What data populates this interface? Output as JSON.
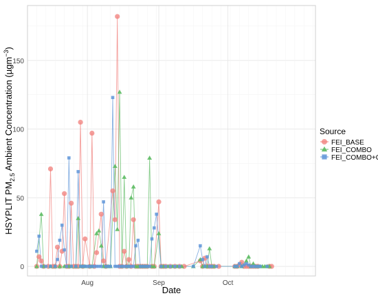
{
  "chart_data": {
    "type": "scatter",
    "ylabel_main": "HSYPLIT PM",
    "ylabel_sub": "2.5",
    "ylabel_rest": " Ambient Concentration (µgm",
    "ylabel_sup": "−3",
    "ylabel_end": ")",
    "xlabel": "Date",
    "x_start": "2011-07-06",
    "x_end": "2011-11-08",
    "ylim": [
      -7,
      190
    ],
    "x_ticks": [
      {
        "date": "2011-08-01",
        "label": "Aug"
      },
      {
        "date": "2011-09-01",
        "label": "Sep"
      },
      {
        "date": "2011-10-01",
        "label": "Oct"
      }
    ],
    "y_ticks": [
      0,
      50,
      100,
      150
    ],
    "grid": true,
    "legend_position": "right",
    "legend_title": "Source",
    "series": [
      {
        "name": "FEI_BASE",
        "color": "#F07E7A",
        "marker": "circle",
        "points": [
          [
            "2011-07-10",
            0
          ],
          [
            "2011-07-11",
            7
          ],
          [
            "2011-07-12",
            4
          ],
          [
            "2011-07-13",
            0
          ],
          [
            "2011-07-15",
            0
          ],
          [
            "2011-07-16",
            71
          ],
          [
            "2011-07-17",
            0
          ],
          [
            "2011-07-18",
            0
          ],
          [
            "2011-07-19",
            14
          ],
          [
            "2011-07-20",
            0
          ],
          [
            "2011-07-21",
            11
          ],
          [
            "2011-07-22",
            53
          ],
          [
            "2011-07-23",
            0
          ],
          [
            "2011-07-24",
            0
          ],
          [
            "2011-07-25",
            46
          ],
          [
            "2011-07-26",
            0
          ],
          [
            "2011-07-27",
            0
          ],
          [
            "2011-07-28",
            0
          ],
          [
            "2011-07-29",
            105
          ],
          [
            "2011-07-30",
            0
          ],
          [
            "2011-07-31",
            20
          ],
          [
            "2011-08-02",
            0
          ],
          [
            "2011-08-03",
            97
          ],
          [
            "2011-08-04",
            0
          ],
          [
            "2011-08-05",
            10
          ],
          [
            "2011-08-07",
            38
          ],
          [
            "2011-08-08",
            4
          ],
          [
            "2011-08-09",
            0
          ],
          [
            "2011-08-12",
            55
          ],
          [
            "2011-08-13",
            34
          ],
          [
            "2011-08-14",
            182
          ],
          [
            "2011-08-15",
            0
          ],
          [
            "2011-08-16",
            0
          ],
          [
            "2011-08-17",
            11
          ],
          [
            "2011-08-18",
            0
          ],
          [
            "2011-08-19",
            5
          ],
          [
            "2011-08-20",
            0
          ],
          [
            "2011-08-21",
            34
          ],
          [
            "2011-08-22",
            0
          ],
          [
            "2011-08-23",
            0
          ],
          [
            "2011-08-24",
            0
          ],
          [
            "2011-08-25",
            0
          ],
          [
            "2011-08-26",
            0
          ],
          [
            "2011-08-27",
            0
          ],
          [
            "2011-08-29",
            0
          ],
          [
            "2011-08-30",
            0
          ],
          [
            "2011-09-01",
            47
          ],
          [
            "2011-09-02",
            0
          ],
          [
            "2011-09-03",
            0
          ],
          [
            "2011-09-04",
            0
          ],
          [
            "2011-09-06",
            0
          ],
          [
            "2011-09-08",
            0
          ],
          [
            "2011-09-10",
            0
          ],
          [
            "2011-09-12",
            0
          ],
          [
            "2011-09-19",
            4
          ],
          [
            "2011-09-20",
            0
          ],
          [
            "2011-09-21",
            6
          ],
          [
            "2011-09-22",
            0
          ],
          [
            "2011-09-23",
            0
          ],
          [
            "2011-09-24",
            0
          ],
          [
            "2011-09-25",
            0
          ],
          [
            "2011-09-27",
            0
          ],
          [
            "2011-10-04",
            0
          ],
          [
            "2011-10-05",
            0
          ],
          [
            "2011-10-06",
            1
          ],
          [
            "2011-10-07",
            3
          ],
          [
            "2011-10-08",
            0
          ],
          [
            "2011-10-09",
            0
          ],
          [
            "2011-10-10",
            0
          ],
          [
            "2011-10-11",
            0
          ],
          [
            "2011-10-12",
            0
          ],
          [
            "2011-10-13",
            0
          ],
          [
            "2011-10-14",
            0
          ],
          [
            "2011-10-19",
            0
          ],
          [
            "2011-10-20",
            0
          ]
        ]
      },
      {
        "name": "FEI_COMBO",
        "color": "#5DBB63",
        "marker": "triangle",
        "points": [
          [
            "2011-07-10",
            0
          ],
          [
            "2011-07-12",
            38
          ],
          [
            "2011-07-13",
            0
          ],
          [
            "2011-07-16",
            0
          ],
          [
            "2011-07-18",
            0
          ],
          [
            "2011-07-20",
            0
          ],
          [
            "2011-07-22",
            0
          ],
          [
            "2011-07-24",
            0
          ],
          [
            "2011-07-25",
            0
          ],
          [
            "2011-07-27",
            0
          ],
          [
            "2011-07-28",
            35
          ],
          [
            "2011-07-29",
            0
          ],
          [
            "2011-07-30",
            0
          ],
          [
            "2011-07-31",
            0
          ],
          [
            "2011-08-02",
            0
          ],
          [
            "2011-08-03",
            0
          ],
          [
            "2011-08-05",
            24
          ],
          [
            "2011-08-06",
            26
          ],
          [
            "2011-08-07",
            15
          ],
          [
            "2011-08-08",
            0
          ],
          [
            "2011-08-09",
            0
          ],
          [
            "2011-08-10",
            0
          ],
          [
            "2011-08-11",
            0
          ],
          [
            "2011-08-13",
            73
          ],
          [
            "2011-08-14",
            27
          ],
          [
            "2011-08-15",
            127
          ],
          [
            "2011-08-16",
            0
          ],
          [
            "2011-08-17",
            65
          ],
          [
            "2011-08-18",
            0
          ],
          [
            "2011-08-19",
            0
          ],
          [
            "2011-08-20",
            50
          ],
          [
            "2011-08-21",
            58
          ],
          [
            "2011-08-22",
            0
          ],
          [
            "2011-08-23",
            0
          ],
          [
            "2011-08-24",
            0
          ],
          [
            "2011-08-25",
            0
          ],
          [
            "2011-08-26",
            0
          ],
          [
            "2011-08-27",
            0
          ],
          [
            "2011-08-28",
            79
          ],
          [
            "2011-08-29",
            0
          ],
          [
            "2011-08-30",
            0
          ],
          [
            "2011-09-01",
            24
          ],
          [
            "2011-09-02",
            0
          ],
          [
            "2011-09-03",
            0
          ],
          [
            "2011-09-05",
            0
          ],
          [
            "2011-09-07",
            0
          ],
          [
            "2011-09-09",
            0
          ],
          [
            "2011-09-11",
            0
          ],
          [
            "2011-09-16",
            0
          ],
          [
            "2011-09-19",
            5
          ],
          [
            "2011-09-20",
            0
          ],
          [
            "2011-09-21",
            0
          ],
          [
            "2011-09-22",
            0
          ],
          [
            "2011-09-23",
            13
          ],
          [
            "2011-09-24",
            0
          ],
          [
            "2011-09-25",
            0
          ],
          [
            "2011-10-04",
            0
          ],
          [
            "2011-10-05",
            0
          ],
          [
            "2011-10-07",
            0
          ],
          [
            "2011-10-09",
            4
          ],
          [
            "2011-10-10",
            7
          ],
          [
            "2011-10-11",
            0
          ],
          [
            "2011-10-12",
            2
          ],
          [
            "2011-10-13",
            0
          ],
          [
            "2011-10-14",
            0
          ],
          [
            "2011-10-15",
            0
          ],
          [
            "2011-10-16",
            0
          ],
          [
            "2011-10-17",
            0
          ],
          [
            "2011-10-18",
            0
          ],
          [
            "2011-10-19",
            0
          ]
        ]
      },
      {
        "name": "FEI_COMBO+CC",
        "color": "#5F95D8",
        "marker": "square",
        "points": [
          [
            "2011-07-10",
            11
          ],
          [
            "2011-07-11",
            22
          ],
          [
            "2011-07-12",
            0
          ],
          [
            "2011-07-14",
            0
          ],
          [
            "2011-07-16",
            0
          ],
          [
            "2011-07-18",
            0
          ],
          [
            "2011-07-19",
            5
          ],
          [
            "2011-07-20",
            19
          ],
          [
            "2011-07-21",
            30
          ],
          [
            "2011-07-22",
            12
          ],
          [
            "2011-07-23",
            0
          ],
          [
            "2011-07-24",
            79
          ],
          [
            "2011-07-25",
            0
          ],
          [
            "2011-07-27",
            0
          ],
          [
            "2011-07-28",
            69
          ],
          [
            "2011-07-29",
            0
          ],
          [
            "2011-07-30",
            0
          ],
          [
            "2011-07-31",
            0
          ],
          [
            "2011-08-01",
            0
          ],
          [
            "2011-08-02",
            0
          ],
          [
            "2011-08-03",
            0
          ],
          [
            "2011-08-04",
            0
          ],
          [
            "2011-08-05",
            0
          ],
          [
            "2011-08-06",
            0
          ],
          [
            "2011-08-07",
            0
          ],
          [
            "2011-08-08",
            47
          ],
          [
            "2011-08-09",
            0
          ],
          [
            "2011-08-10",
            0
          ],
          [
            "2011-08-11",
            0
          ],
          [
            "2011-08-12",
            123
          ],
          [
            "2011-08-13",
            0
          ],
          [
            "2011-08-14",
            0
          ],
          [
            "2011-08-15",
            0
          ],
          [
            "2011-08-16",
            0
          ],
          [
            "2011-08-17",
            0
          ],
          [
            "2011-08-18",
            0
          ],
          [
            "2011-08-19",
            0
          ],
          [
            "2011-08-20",
            0
          ],
          [
            "2011-08-21",
            0
          ],
          [
            "2011-08-22",
            15
          ],
          [
            "2011-08-23",
            19
          ],
          [
            "2011-08-24",
            0
          ],
          [
            "2011-08-25",
            0
          ],
          [
            "2011-08-26",
            0
          ],
          [
            "2011-08-27",
            0
          ],
          [
            "2011-08-28",
            0
          ],
          [
            "2011-08-29",
            20
          ],
          [
            "2011-08-30",
            28
          ],
          [
            "2011-08-31",
            38
          ],
          [
            "2011-09-02",
            0
          ],
          [
            "2011-09-04",
            0
          ],
          [
            "2011-09-06",
            0
          ],
          [
            "2011-09-08",
            0
          ],
          [
            "2011-09-10",
            0
          ],
          [
            "2011-09-16",
            0
          ],
          [
            "2011-09-19",
            15
          ],
          [
            "2011-09-20",
            5
          ],
          [
            "2011-09-21",
            0
          ],
          [
            "2011-09-22",
            7
          ],
          [
            "2011-09-23",
            0
          ],
          [
            "2011-09-24",
            0
          ],
          [
            "2011-09-26",
            0
          ],
          [
            "2011-10-04",
            0
          ],
          [
            "2011-10-05",
            0
          ],
          [
            "2011-10-06",
            2
          ],
          [
            "2011-10-07",
            0
          ],
          [
            "2011-10-08",
            1
          ],
          [
            "2011-10-09",
            2
          ],
          [
            "2011-10-10",
            1
          ],
          [
            "2011-10-11",
            0
          ],
          [
            "2011-10-12",
            0
          ],
          [
            "2011-10-13",
            0
          ],
          [
            "2011-10-14",
            0
          ],
          [
            "2011-10-15",
            0
          ],
          [
            "2011-10-18",
            0
          ]
        ]
      }
    ]
  }
}
